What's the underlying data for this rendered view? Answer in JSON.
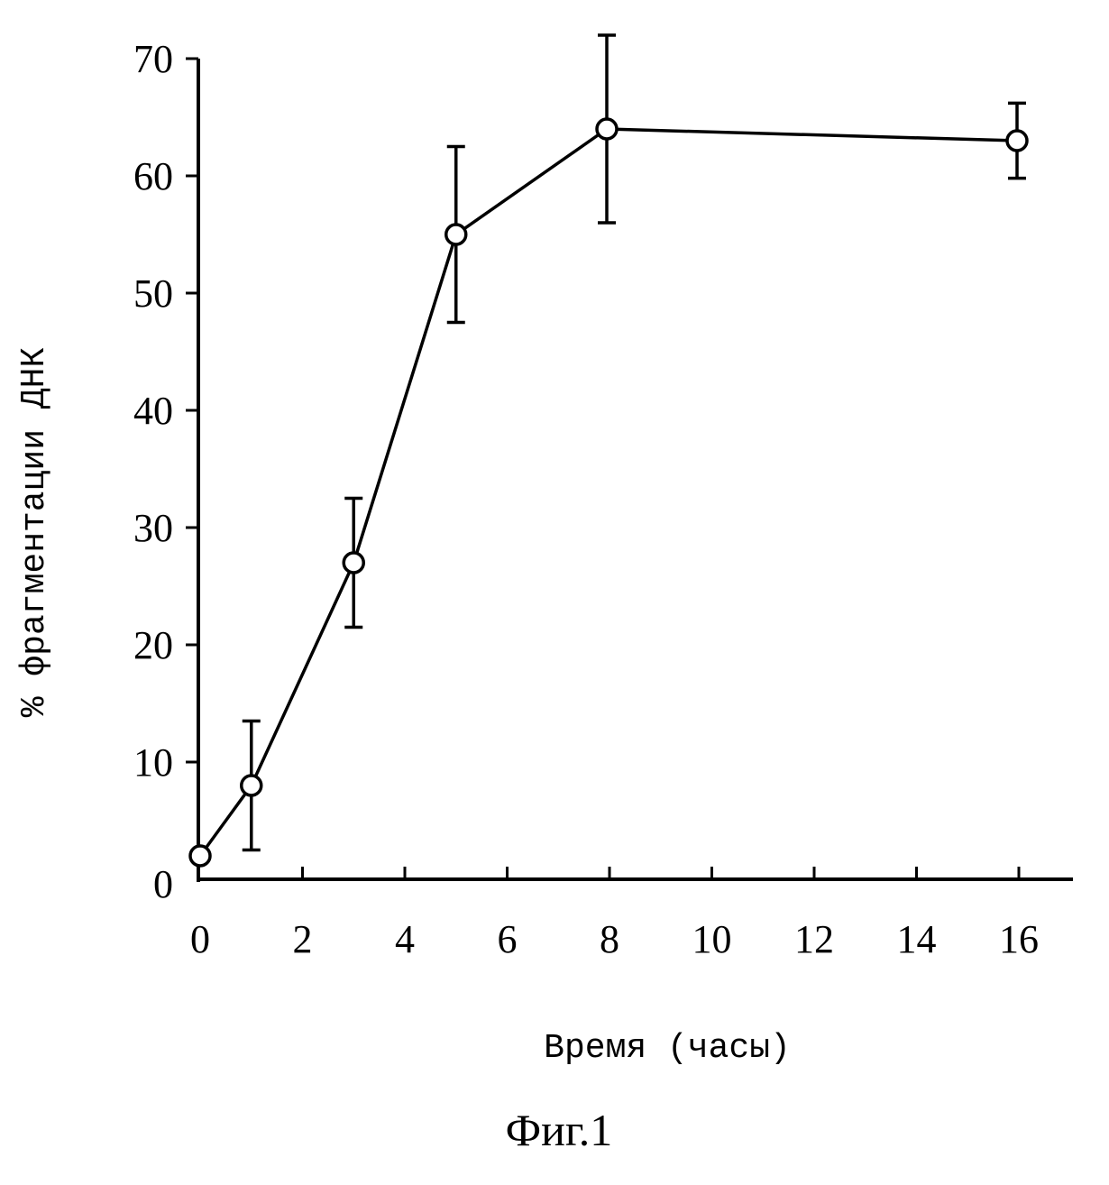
{
  "chart_data": {
    "type": "line",
    "title": "",
    "xlabel": "Время (часы)",
    "ylabel": "% фрагментации ДНК",
    "caption": "Фиг.1",
    "x_tick_labels": [
      "0",
      "2",
      "4",
      "6",
      "8",
      "10",
      "12",
      "14",
      "16"
    ],
    "y_tick_labels": [
      "0",
      "10",
      "20",
      "30",
      "40",
      "50",
      "60",
      "70"
    ],
    "ylim": [
      0,
      70
    ],
    "grid": false,
    "marker": "open-circle",
    "series": [
      {
        "points": [
          {
            "x": "0",
            "y": 2,
            "err": 0
          },
          {
            "x": "1",
            "y": 8,
            "err": 5.5
          },
          {
            "x": "3",
            "y": 27,
            "err": 5.5
          },
          {
            "x": "5",
            "y": 55,
            "err": 7.5
          },
          {
            "x": "8",
            "y": 64,
            "err": 8
          },
          {
            "x": "16",
            "y": 63,
            "err": 3.2
          }
        ]
      }
    ]
  }
}
